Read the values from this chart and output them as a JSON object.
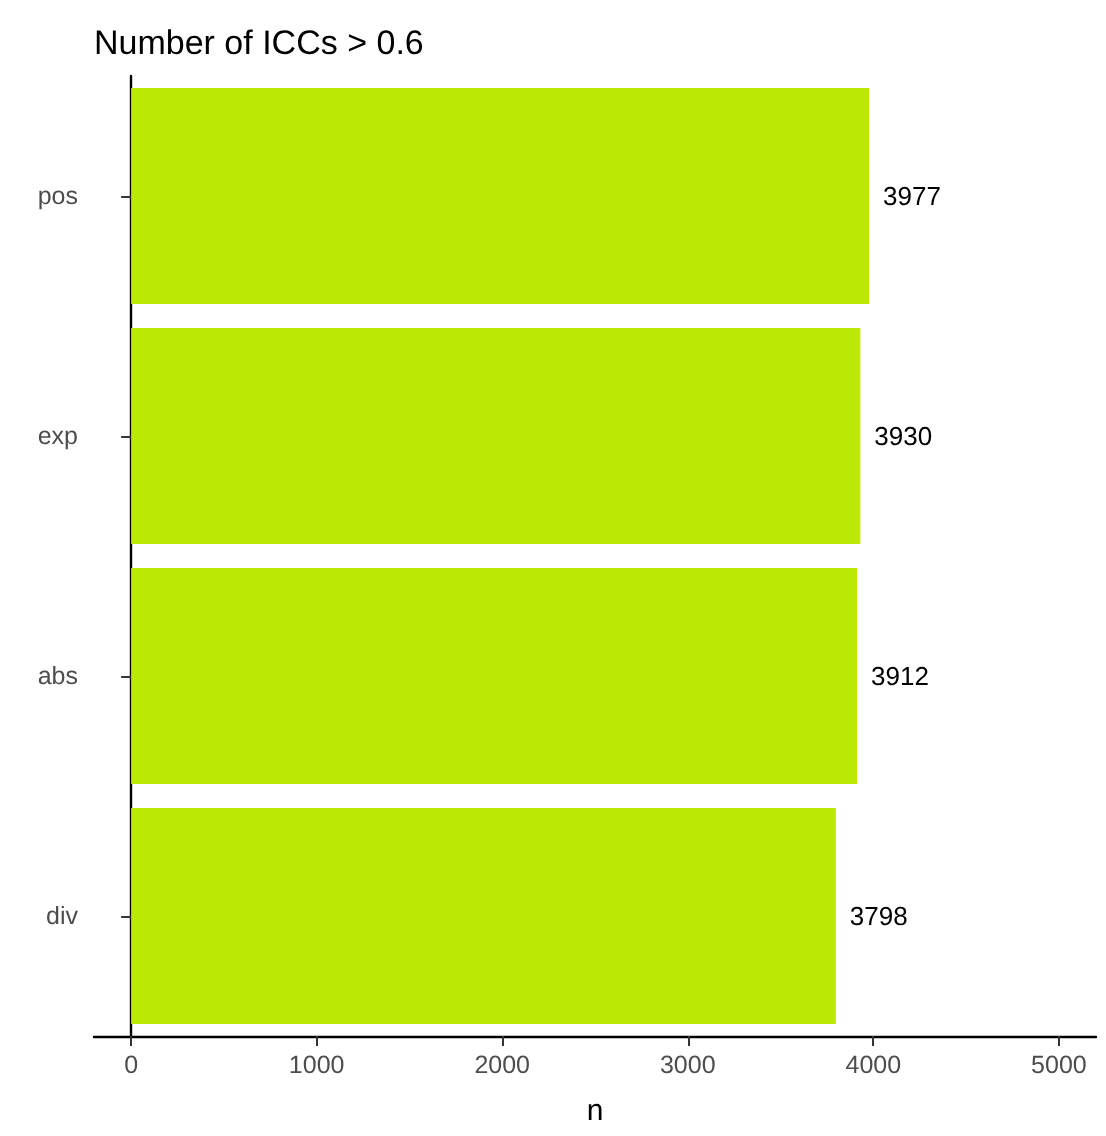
{
  "chart_data": {
    "type": "bar",
    "title": "Number of ICCs > 0.6",
    "xlabel": "n",
    "orientation": "horizontal",
    "categories": [
      "pos",
      "exp",
      "abs",
      "div"
    ],
    "values": [
      3977,
      3930,
      3912,
      3798
    ],
    "color": "#bbe805",
    "xlim": [
      -200,
      5200
    ],
    "xticks": [
      0,
      1000,
      2000,
      3000,
      4000,
      5000
    ],
    "data_labels": true,
    "grid": false
  }
}
